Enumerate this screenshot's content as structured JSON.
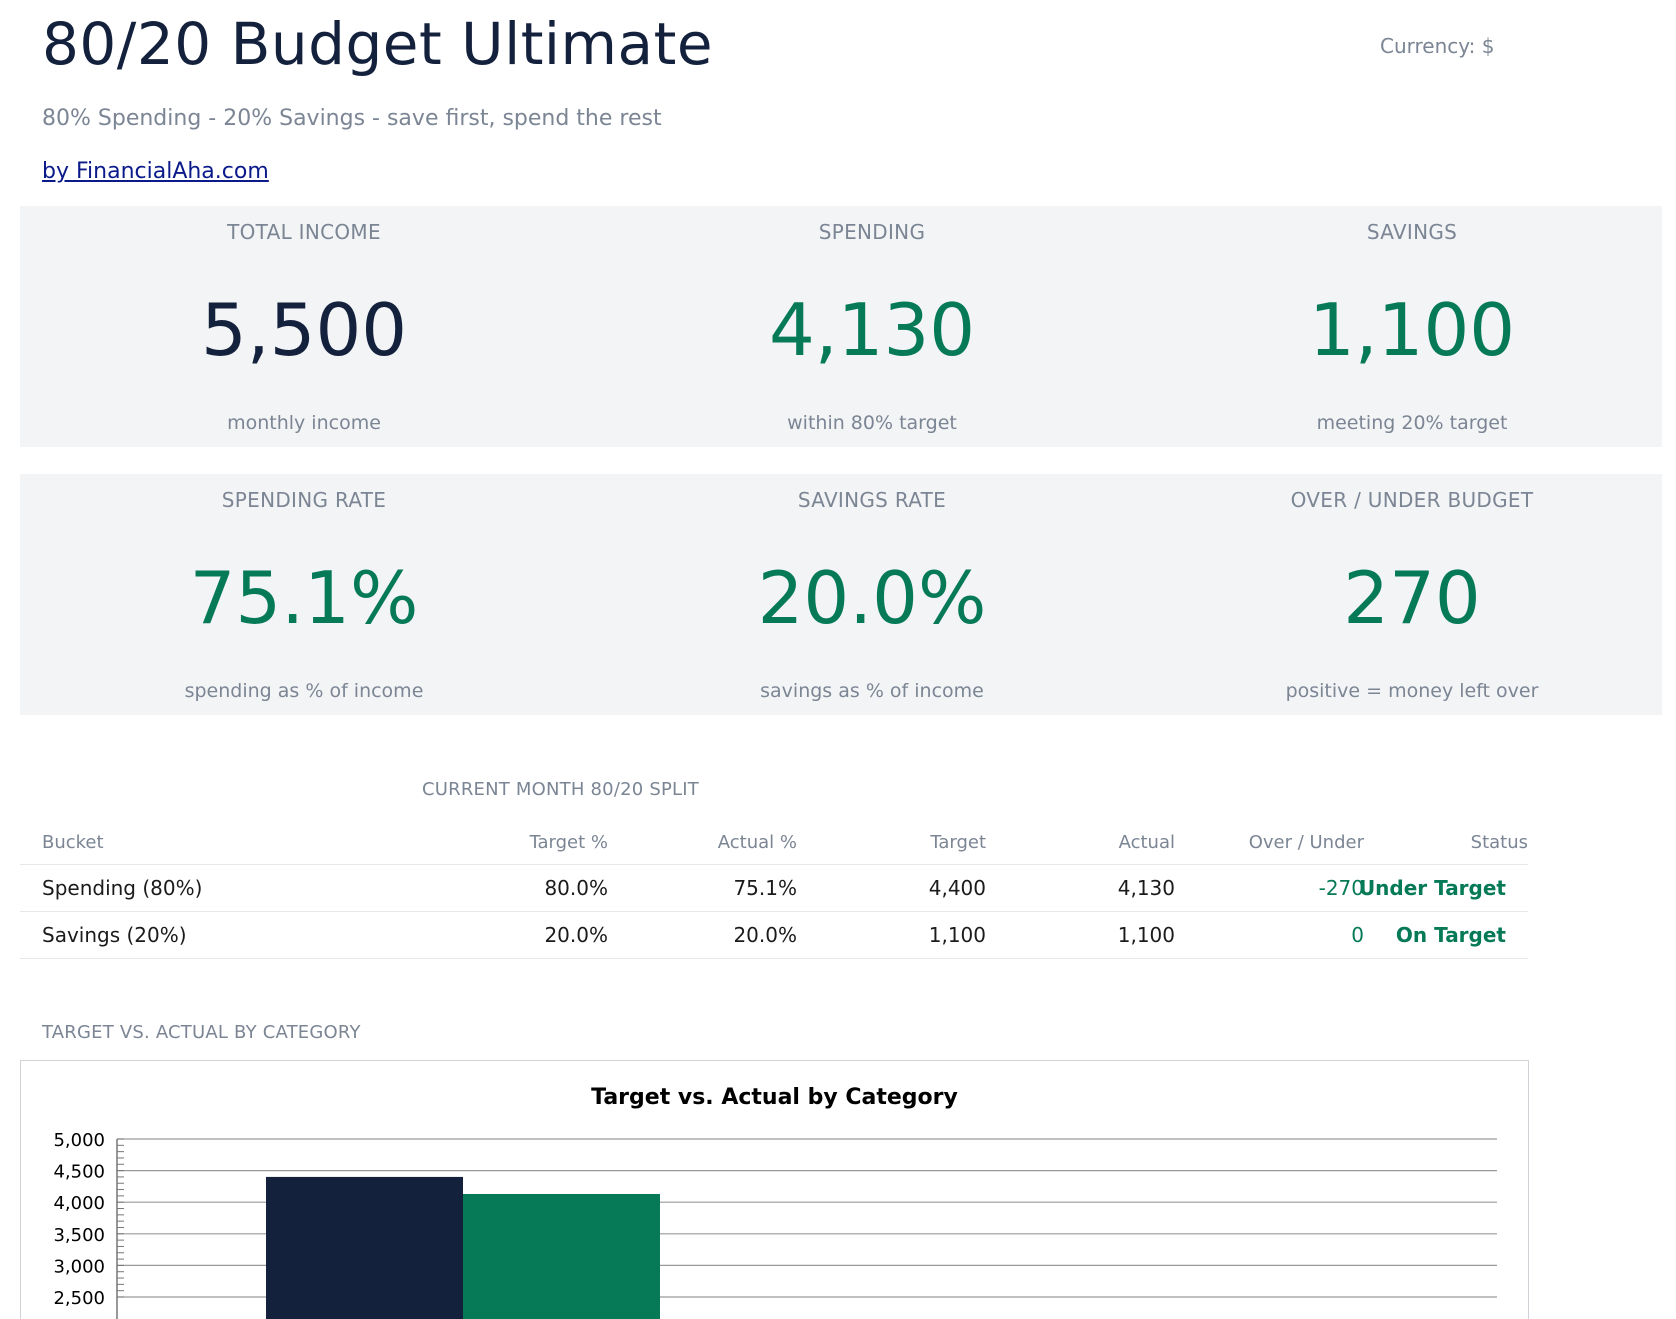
{
  "header": {
    "title": "80/20 Budget Ultimate",
    "currency": "Currency: $",
    "subtitle": "80% Spending - 20% Savings - save first, spend the rest",
    "byline": "by FinancialAha.com"
  },
  "cards_row1": [
    {
      "label": "TOTAL INCOME",
      "value": "5,500",
      "note": "monthly income"
    },
    {
      "label": "SPENDING",
      "value": "4,130",
      "note": "within 80% target"
    },
    {
      "label": "SAVINGS",
      "value": "1,100",
      "note": "meeting 20% target"
    }
  ],
  "cards_row2": [
    {
      "label": "SPENDING RATE",
      "value": "75.1%",
      "note": "spending as % of income"
    },
    {
      "label": "SAVINGS RATE",
      "value": "20.0%",
      "note": "savings as % of income"
    },
    {
      "label": "OVER / UNDER BUDGET",
      "value": "270",
      "note": "positive = money left over"
    }
  ],
  "split": {
    "section_label": "CURRENT MONTH 80/20 SPLIT",
    "headers": [
      "Bucket",
      "Target %",
      "Actual %",
      "Target",
      "Actual",
      "Over / Under",
      "Status"
    ],
    "rows": [
      {
        "bucket": "Spending (80%)",
        "target_pct": "80.0%",
        "actual_pct": "75.1%",
        "target": "4,400",
        "actual": "4,130",
        "over_under": "-270",
        "status": "Under Target"
      },
      {
        "bucket": "Savings (20%)",
        "target_pct": "20.0%",
        "actual_pct": "20.0%",
        "target": "1,100",
        "actual": "1,100",
        "over_under": "0",
        "status": "On Target"
      }
    ]
  },
  "chart_section": {
    "section_label": "TARGET VS. ACTUAL BY CATEGORY"
  },
  "colors": {
    "navy": "#14213d",
    "green": "#067a57",
    "muted": "#7b8594",
    "card_bg": "#f3f4f6"
  },
  "chart_data": {
    "type": "bar",
    "title": "Target vs. Actual by Category",
    "xlabel": "",
    "ylabel": "",
    "ylim": [
      2500,
      5000
    ],
    "yticks": [
      "2,500",
      "3,000",
      "3,500",
      "4,000",
      "4,500",
      "5,000"
    ],
    "grid": true,
    "series": [
      {
        "values": [
          4400
        ],
        "color": "#14213d"
      },
      {
        "values": [
          4130
        ],
        "color": "#067a57"
      }
    ]
  }
}
